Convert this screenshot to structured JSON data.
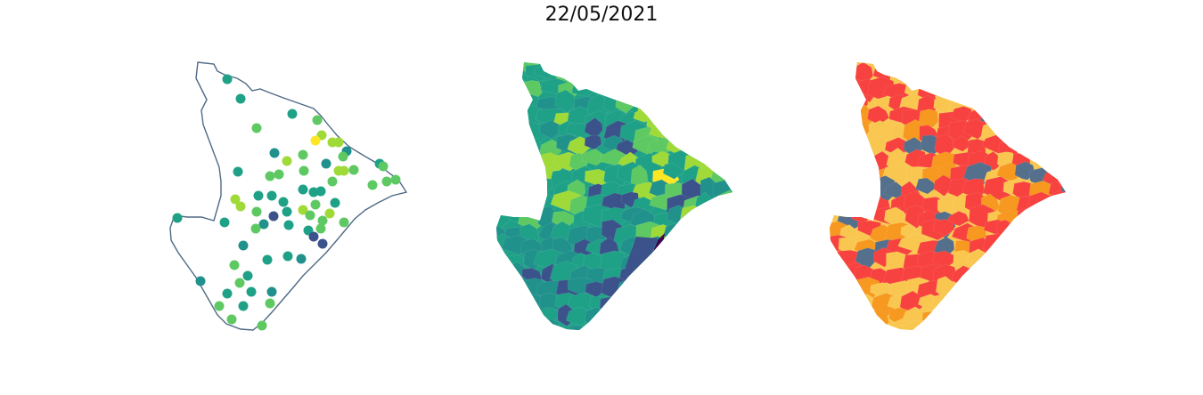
{
  "figure": {
    "title": "22/05/2021"
  },
  "colors": {
    "outline": "#4f6a86",
    "viridis": [
      "#440154",
      "#3b528b",
      "#21918c",
      "#1fa187",
      "#5ec962",
      "#a0da39",
      "#fde725"
    ],
    "risk": {
      "low": "#54708c",
      "moderate": "#f9c750",
      "high": "#f79820",
      "very_high": "#f74240"
    }
  },
  "panels": [
    {
      "name": "points-map",
      "kind": "scatter points on outline"
    },
    {
      "name": "choropleth-continuous",
      "kind": "viridis choropleth"
    },
    {
      "name": "choropleth-risk",
      "kind": "categorical choropleth"
    }
  ]
}
